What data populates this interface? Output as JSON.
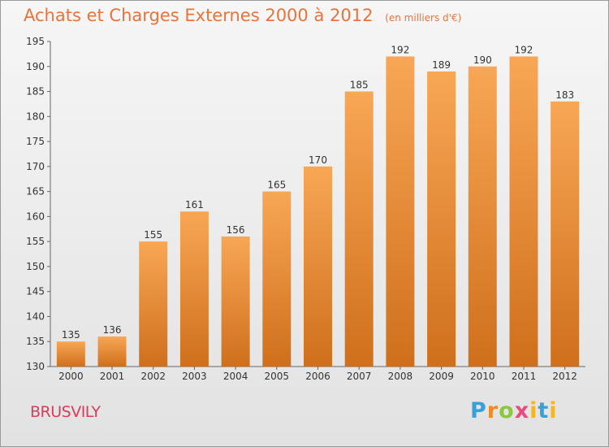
{
  "header": {
    "title": "Achats et Charges Externes 2000 à 2012",
    "subtitle": "(en milliers d'€)"
  },
  "footer": {
    "location": "BRUSVILY",
    "brand": "Proxiti"
  },
  "colors": {
    "title": "#e8743b",
    "bar_top": "#f8a755",
    "bar_bottom": "#cf6f1c",
    "location": "#d93d5c"
  },
  "chart_data": {
    "type": "bar",
    "title": "Achats et Charges Externes 2000 à 2012",
    "subtitle": "(en milliers d'€)",
    "categories": [
      "2000",
      "2001",
      "2002",
      "2003",
      "2004",
      "2005",
      "2006",
      "2007",
      "2008",
      "2009",
      "2010",
      "2011",
      "2012"
    ],
    "values": [
      135,
      136,
      155,
      161,
      156,
      165,
      170,
      185,
      192,
      189,
      190,
      192,
      183
    ],
    "ylim": [
      130,
      195
    ],
    "yticks": [
      130,
      135,
      140,
      145,
      150,
      155,
      160,
      165,
      170,
      175,
      180,
      185,
      190,
      195
    ],
    "grid": false,
    "xlabel": "",
    "ylabel": ""
  }
}
